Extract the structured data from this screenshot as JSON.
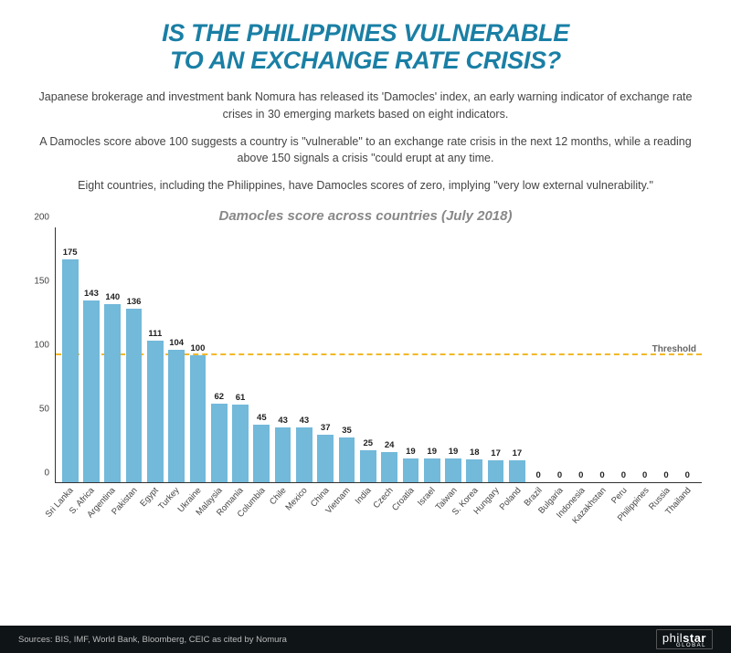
{
  "title_line1": "IS THE PHILIPPINES VULNERABLE",
  "title_line2": "TO AN EXCHANGE RATE CRISIS?",
  "intro_p1": "Japanese brokerage and investment bank Nomura has released its 'Damocles' index,\nan early warning indicator of exchange rate crises in 30 emerging markets based on eight indicators.",
  "intro_p2": "A Damocles score above 100 suggests a country is \"vulnerable\" to an exchange rate crisis in the\nnext 12 months, while a reading above 150 signals a crisis \"could erupt at any time.",
  "intro_p3": "Eight countries, including the Philippines, have Damocles scores of zero,\nimplying \"very low external vulnerability.\"",
  "chart": {
    "title": "Damocles score across countries (July 2018)",
    "type": "bar",
    "y_axis": {
      "min": 0,
      "max": 200,
      "ticks": [
        0,
        50,
        100,
        150,
        200
      ]
    },
    "threshold": {
      "value": 100,
      "label": "Threshold",
      "color": "#f2b826"
    },
    "bar_color": "#72b9da",
    "background_color": "#ffffff",
    "axis_color": "#333333",
    "value_font_size": 9.5,
    "label_font_size": 9.5,
    "data": [
      {
        "label": "Sri Lanka",
        "value": 175
      },
      {
        "label": "S. Africa",
        "value": 143
      },
      {
        "label": "Argentina",
        "value": 140
      },
      {
        "label": "Pakistan",
        "value": 136
      },
      {
        "label": "Egypt",
        "value": 111
      },
      {
        "label": "Turkey",
        "value": 104
      },
      {
        "label": "Ukraine",
        "value": 100
      },
      {
        "label": "Malaysia",
        "value": 62
      },
      {
        "label": "Romania",
        "value": 61
      },
      {
        "label": "Columbia",
        "value": 45
      },
      {
        "label": "Chile",
        "value": 43
      },
      {
        "label": "Mexico",
        "value": 43
      },
      {
        "label": "China",
        "value": 37
      },
      {
        "label": "Vietnam",
        "value": 35
      },
      {
        "label": "India",
        "value": 25
      },
      {
        "label": "Czech",
        "value": 24
      },
      {
        "label": "Croatia",
        "value": 19
      },
      {
        "label": "Israel",
        "value": 19
      },
      {
        "label": "Taiwan",
        "value": 19
      },
      {
        "label": "S. Korea",
        "value": 18
      },
      {
        "label": "Hungary",
        "value": 17
      },
      {
        "label": "Poland",
        "value": 17
      },
      {
        "label": "Brazil",
        "value": 0
      },
      {
        "label": "Bulgaria",
        "value": 0
      },
      {
        "label": "Indonesia",
        "value": 0
      },
      {
        "label": "Kazakhstan",
        "value": 0
      },
      {
        "label": "Peru",
        "value": 0
      },
      {
        "label": "Philippines",
        "value": 0
      },
      {
        "label": "Russia",
        "value": 0
      },
      {
        "label": "Thailand",
        "value": 0
      }
    ]
  },
  "footer": {
    "sources": "Sources: BIS, IMF, World Bank, Bloomberg, CEIC as cited by Nomura",
    "logo_thin": "phil",
    "logo_bold": "star",
    "logo_sub": "GLOBAL"
  }
}
